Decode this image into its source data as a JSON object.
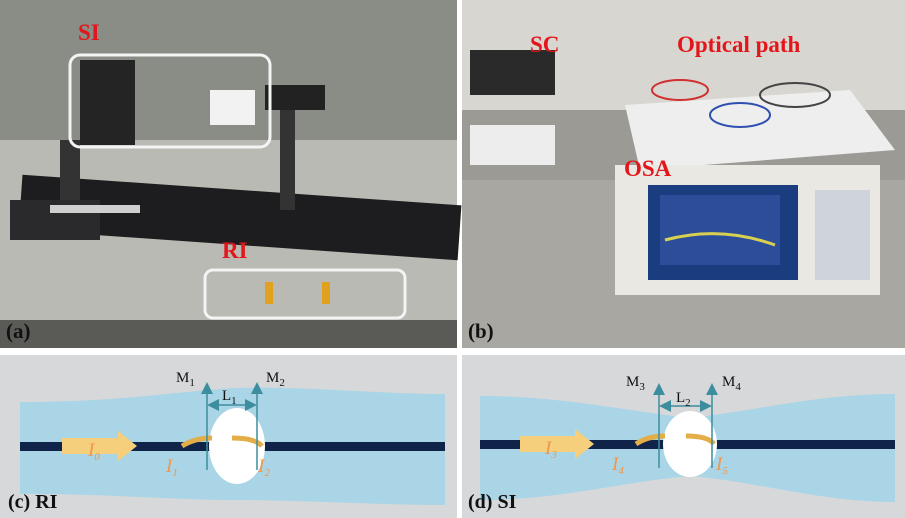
{
  "photo_a": {
    "panel_label": "(a)",
    "labels": [
      "SI",
      "RI"
    ]
  },
  "photo_b": {
    "panel_label": "(b)",
    "labels": [
      "SC",
      "Optical path",
      "OSA"
    ]
  },
  "diagram_c": {
    "caption": "(c) RI",
    "mirrors": [
      {
        "symbol": "M",
        "index": "1"
      },
      {
        "symbol": "M",
        "index": "2"
      }
    ],
    "length": {
      "symbol": "L",
      "index": "1"
    },
    "beams": [
      {
        "symbol": "I",
        "index": "0"
      },
      {
        "symbol": "I",
        "index": "1"
      },
      {
        "symbol": "I",
        "index": "2"
      }
    ]
  },
  "diagram_d": {
    "caption": "(d) SI",
    "mirrors": [
      {
        "symbol": "M",
        "index": "3"
      },
      {
        "symbol": "M",
        "index": "4"
      }
    ],
    "length": {
      "symbol": "L",
      "index": "2"
    },
    "beams": [
      {
        "symbol": "I",
        "index": "3"
      },
      {
        "symbol": "I",
        "index": "4"
      },
      {
        "symbol": "I",
        "index": "5"
      }
    ]
  }
}
